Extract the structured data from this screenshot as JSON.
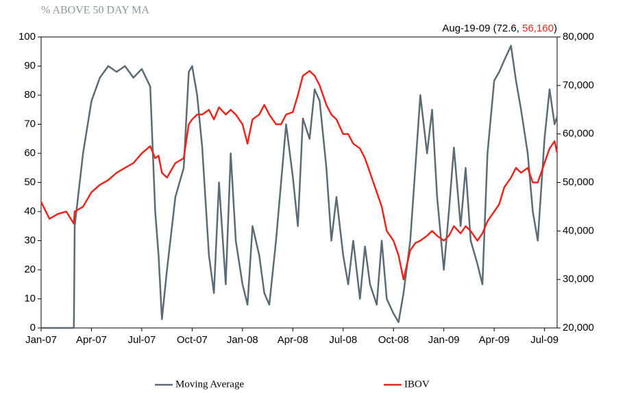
{
  "chart_data": {
    "type": "line",
    "title": "% ABOVE 50 DAY MA",
    "annotation": [
      "Aug-19-09 (72.6, ",
      "56,160",
      ")"
    ],
    "annotation_colors": [
      "#000000",
      "#e8261c",
      "#000000"
    ],
    "x": [
      0,
      0.5,
      1,
      1.5,
      1.95,
      2,
      2.5,
      3,
      3.5,
      4,
      4.5,
      5,
      5.5,
      6,
      6.5,
      6.8,
      7,
      7.2,
      7.5,
      8,
      8.5,
      8.8,
      9,
      9.3,
      9.6,
      10,
      10.3,
      10.6,
      11,
      11.3,
      11.6,
      12,
      12.3,
      12.6,
      13,
      13.3,
      13.6,
      14,
      14.3,
      14.6,
      15,
      15.3,
      15.6,
      16,
      16.3,
      16.6,
      17,
      17.3,
      17.6,
      18,
      18.3,
      18.6,
      19,
      19.3,
      19.6,
      20,
      20.3,
      20.6,
      21,
      21.3,
      21.6,
      22,
      22.3,
      22.6,
      23,
      23.3,
      23.6,
      24,
      24.3,
      24.6,
      25,
      25.3,
      25.6,
      26,
      26.3,
      26.6,
      27,
      27.3,
      27.6,
      28,
      28.3,
      28.6,
      29,
      29.3,
      29.6,
      30,
      30.3,
      30.6,
      30.75
    ],
    "xlim": [
      0,
      30.75
    ],
    "xticks": [
      {
        "value": 0,
        "label": "Jan-07"
      },
      {
        "value": 3,
        "label": "Apr-07"
      },
      {
        "value": 6,
        "label": "Jul-07"
      },
      {
        "value": 9,
        "label": "Oct-07"
      },
      {
        "value": 12,
        "label": "Jan-08"
      },
      {
        "value": 15,
        "label": "Apr-08"
      },
      {
        "value": 18,
        "label": "Jul-08"
      },
      {
        "value": 21,
        "label": "Oct-08"
      },
      {
        "value": 24,
        "label": "Jan-09"
      },
      {
        "value": 27,
        "label": "Apr-09"
      },
      {
        "value": 30,
        "label": "Jul-09"
      }
    ],
    "ylim": [
      0,
      100
    ],
    "yticks": [
      0,
      10,
      20,
      30,
      40,
      50,
      60,
      70,
      80,
      90,
      100
    ],
    "y2lim": [
      20000,
      80000
    ],
    "y2ticks": [
      {
        "value": 20000,
        "label": "20,000"
      },
      {
        "value": 30000,
        "label": "30,000"
      },
      {
        "value": 40000,
        "label": "40,000"
      },
      {
        "value": 50000,
        "label": "50,000"
      },
      {
        "value": 60000,
        "label": "60,000"
      },
      {
        "value": 70000,
        "label": "70,000"
      },
      {
        "value": 80000,
        "label": "80,000"
      }
    ],
    "legend": "bottom",
    "series": [
      {
        "name": "Moving Average",
        "color": "#5a6b73",
        "axis": "y",
        "values": [
          0,
          0,
          0,
          0,
          0,
          35,
          60,
          78,
          86,
          90,
          88,
          90,
          86,
          89,
          83,
          40,
          25,
          3,
          20,
          45,
          55,
          88,
          90,
          80,
          62,
          25,
          12,
          50,
          15,
          60,
          30,
          15,
          8,
          35,
          25,
          12,
          8,
          30,
          50,
          70,
          52,
          35,
          72,
          65,
          82,
          78,
          55,
          30,
          45,
          25,
          15,
          30,
          10,
          28,
          15,
          8,
          30,
          10,
          5,
          2,
          12,
          30,
          55,
          80,
          60,
          75,
          45,
          20,
          40,
          62,
          35,
          55,
          30,
          22,
          15,
          60,
          85,
          88,
          92,
          97,
          85,
          75,
          60,
          40,
          30,
          65,
          82,
          70,
          72.6
        ]
      },
      {
        "name": "IBOV",
        "color": "#e8261c",
        "axis": "y2",
        "values": [
          46000,
          42500,
          43500,
          44000,
          41500,
          44000,
          45000,
          48000,
          49500,
          50500,
          52000,
          53000,
          54000,
          56000,
          57500,
          55000,
          55500,
          52000,
          51000,
          54000,
          55000,
          62000,
          63000,
          64000,
          64000,
          65000,
          63000,
          65500,
          64000,
          65000,
          64000,
          62000,
          58000,
          63000,
          64000,
          66000,
          64000,
          62000,
          62000,
          64000,
          64500,
          68000,
          72000,
          73000,
          72000,
          70000,
          66000,
          64000,
          63000,
          60000,
          60000,
          58000,
          57000,
          55000,
          52000,
          48000,
          45000,
          40000,
          38000,
          35000,
          30000,
          36000,
          37500,
          38000,
          39000,
          40000,
          39000,
          38000,
          39000,
          41000,
          39500,
          41000,
          40000,
          38000,
          39500,
          42000,
          44000,
          45500,
          49000,
          51000,
          53000,
          52000,
          53000,
          50000,
          50000,
          54000,
          57000,
          58500,
          56160
        ]
      }
    ]
  }
}
